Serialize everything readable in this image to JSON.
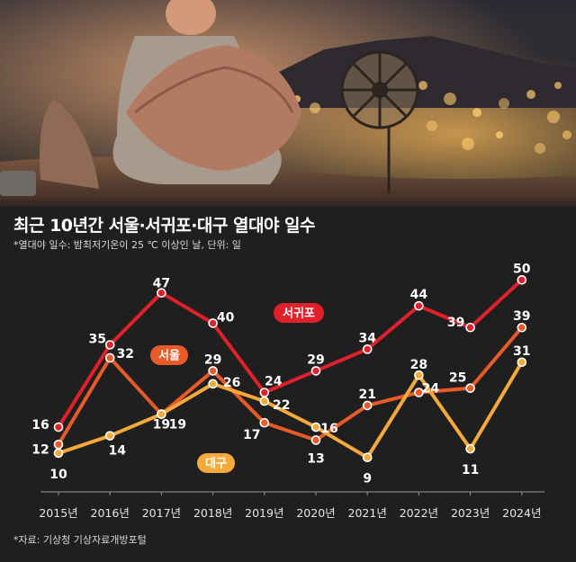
{
  "title": "최근 10년간 서울·서귀포·대구 열대야 일수",
  "subtitle": "*열대야 일수: 밤최저기온이 25 ℃ 이상인 날, 단위: 일",
  "source": "*자료: 기상청 기상자료개방포털",
  "chart_data": {
    "type": "line",
    "categories": [
      "2015년",
      "2016년",
      "2017년",
      "2018년",
      "2019년",
      "2020년",
      "2021년",
      "2022년",
      "2023년",
      "2024년"
    ],
    "series": [
      {
        "name": "서귀포",
        "color": "#e0202a",
        "values": [
          16,
          35,
          47,
          40,
          24,
          29,
          34,
          44,
          39,
          50
        ]
      },
      {
        "name": "서울",
        "color": "#e85a28",
        "values": [
          12,
          32,
          19,
          29,
          17,
          13,
          21,
          24,
          25,
          39
        ]
      },
      {
        "name": "대구",
        "color": "#f5a93a",
        "values": [
          10,
          14,
          19,
          26,
          22,
          16,
          9,
          28,
          11,
          31
        ]
      }
    ],
    "ylim": [
      5,
      54
    ],
    "grid": false,
    "legend": "inline labels"
  }
}
